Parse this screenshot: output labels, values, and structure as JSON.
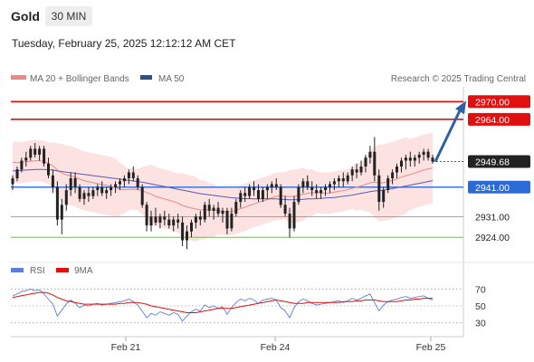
{
  "header": {
    "symbol": "Gold",
    "timeframe": "30 MIN",
    "timestamp": "Tuesday, February 25, 2025 12:12:12 AM CET"
  },
  "legend": {
    "ma20": "MA 20 + Bollinger Bands",
    "ma50": "MA 50",
    "rsi": "RSI",
    "ma9": "9MA",
    "credit": "Research © 2025 Trading Central"
  },
  "colors": {
    "candle": "#222222",
    "band_fill": "#fde2e2",
    "ma20": "#e88a8a",
    "ma50": "#5a5ab8",
    "resistance": "#e01010",
    "pivot": "#2a6bd8",
    "support": "#6aa84f",
    "rsi": "#5b7fd6",
    "rsi_ma": "#e01010",
    "arrow": "#2f5fa8",
    "last_price_bg": "#222222"
  },
  "chart_data": [
    {
      "type": "candlestick",
      "title": "Gold",
      "x_ticks": [
        "Feb 21",
        "Feb 24",
        "Feb 25"
      ],
      "ylim": [
        2917,
        2975
      ],
      "candles": [
        [
          2942,
          2945,
          2940,
          2944
        ],
        [
          2944,
          2948,
          2943,
          2947
        ],
        [
          2947,
          2951,
          2946,
          2950
        ],
        [
          2950,
          2953,
          2948,
          2951
        ],
        [
          2951,
          2955,
          2950,
          2954
        ],
        [
          2954,
          2956,
          2951,
          2952
        ],
        [
          2952,
          2955,
          2950,
          2954
        ],
        [
          2954,
          2955,
          2948,
          2949
        ],
        [
          2949,
          2951,
          2944,
          2945
        ],
        [
          2945,
          2947,
          2939,
          2941
        ],
        [
          2941,
          2943,
          2928,
          2930
        ],
        [
          2930,
          2937,
          2925,
          2935
        ],
        [
          2935,
          2942,
          2933,
          2940
        ],
        [
          2940,
          2946,
          2938,
          2944
        ],
        [
          2944,
          2946,
          2939,
          2941
        ],
        [
          2941,
          2942,
          2936,
          2937
        ],
        [
          2937,
          2940,
          2935,
          2939
        ],
        [
          2939,
          2941,
          2936,
          2938
        ],
        [
          2938,
          2941,
          2937,
          2940
        ],
        [
          2940,
          2942,
          2938,
          2941
        ],
        [
          2941,
          2943,
          2938,
          2939
        ],
        [
          2939,
          2941,
          2937,
          2940
        ],
        [
          2940,
          2942,
          2938,
          2941
        ],
        [
          2941,
          2943,
          2939,
          2942
        ],
        [
          2942,
          2944,
          2940,
          2943
        ],
        [
          2943,
          2945,
          2941,
          2944
        ],
        [
          2944,
          2947,
          2942,
          2946
        ],
        [
          2946,
          2948,
          2943,
          2944
        ],
        [
          2944,
          2945,
          2940,
          2941
        ],
        [
          2941,
          2942,
          2934,
          2935
        ],
        [
          2935,
          2936,
          2926,
          2928
        ],
        [
          2928,
          2933,
          2926,
          2931
        ],
        [
          2931,
          2934,
          2928,
          2929
        ],
        [
          2929,
          2932,
          2927,
          2931
        ],
        [
          2931,
          2933,
          2928,
          2930
        ],
        [
          2930,
          2932,
          2927,
          2928
        ],
        [
          2928,
          2931,
          2926,
          2930
        ],
        [
          2930,
          2932,
          2927,
          2929
        ],
        [
          2929,
          2931,
          2921,
          2923
        ],
        [
          2923,
          2928,
          2920,
          2926
        ],
        [
          2926,
          2930,
          2924,
          2929
        ],
        [
          2929,
          2932,
          2927,
          2931
        ],
        [
          2931,
          2933,
          2928,
          2930
        ],
        [
          2930,
          2936,
          2929,
          2935
        ],
        [
          2935,
          2937,
          2931,
          2933
        ],
        [
          2933,
          2935,
          2930,
          2934
        ],
        [
          2934,
          2936,
          2931,
          2932
        ],
        [
          2932,
          2934,
          2929,
          2933
        ],
        [
          2933,
          2934,
          2925,
          2927
        ],
        [
          2927,
          2934,
          2926,
          2932
        ],
        [
          2932,
          2937,
          2931,
          2936
        ],
        [
          2936,
          2940,
          2934,
          2939
        ],
        [
          2939,
          2941,
          2936,
          2938
        ],
        [
          2938,
          2942,
          2937,
          2941
        ],
        [
          2941,
          2943,
          2938,
          2940
        ],
        [
          2940,
          2942,
          2936,
          2937
        ],
        [
          2937,
          2941,
          2936,
          2940
        ],
        [
          2940,
          2942,
          2937,
          2941
        ],
        [
          2941,
          2943,
          2939,
          2942
        ],
        [
          2942,
          2944,
          2940,
          2941
        ],
        [
          2941,
          2942,
          2934,
          2935
        ],
        [
          2935,
          2938,
          2931,
          2932
        ],
        [
          2932,
          2934,
          2924,
          2927
        ],
        [
          2927,
          2938,
          2926,
          2936
        ],
        [
          2936,
          2942,
          2935,
          2941
        ],
        [
          2941,
          2944,
          2939,
          2943
        ],
        [
          2943,
          2945,
          2940,
          2941
        ],
        [
          2941,
          2943,
          2938,
          2940
        ],
        [
          2940,
          2942,
          2937,
          2939
        ],
        [
          2939,
          2941,
          2937,
          2940
        ],
        [
          2940,
          2942,
          2938,
          2941
        ],
        [
          2941,
          2943,
          2939,
          2942
        ],
        [
          2942,
          2944,
          2940,
          2943
        ],
        [
          2943,
          2945,
          2941,
          2944
        ],
        [
          2944,
          2946,
          2941,
          2943
        ],
        [
          2943,
          2946,
          2942,
          2945
        ],
        [
          2945,
          2948,
          2943,
          2947
        ],
        [
          2947,
          2949,
          2944,
          2946
        ],
        [
          2946,
          2950,
          2945,
          2948
        ],
        [
          2948,
          2952,
          2946,
          2951
        ],
        [
          2951,
          2955,
          2949,
          2953
        ],
        [
          2953,
          2958,
          2943,
          2945
        ],
        [
          2945,
          2947,
          2933,
          2936
        ],
        [
          2936,
          2941,
          2934,
          2940
        ],
        [
          2940,
          2945,
          2939,
          2944
        ],
        [
          2944,
          2947,
          2942,
          2946
        ],
        [
          2946,
          2949,
          2944,
          2948
        ],
        [
          2948,
          2951,
          2946,
          2950
        ],
        [
          2950,
          2952,
          2947,
          2951
        ],
        [
          2951,
          2953,
          2948,
          2950
        ],
        [
          2950,
          2952,
          2948,
          2951
        ],
        [
          2951,
          2953,
          2949,
          2952
        ],
        [
          2952,
          2954,
          2950,
          2953
        ],
        [
          2953,
          2954,
          2950,
          2951
        ],
        [
          2951,
          2952,
          2949,
          2949.68
        ]
      ],
      "ma20": [
        2949.5,
        2949.3,
        2949.4,
        2949.6,
        2949.8,
        2949.9,
        2950.0,
        2949.7,
        2949.0,
        2948.2,
        2946.8,
        2945.8,
        2945.2,
        2944.9,
        2944.4,
        2943.7,
        2943.2,
        2942.8,
        2942.5,
        2942.2,
        2941.9,
        2941.6,
        2941.2,
        2940.8,
        2940.3,
        2940.1,
        2940.2,
        2940.3,
        2940.2,
        2939.8,
        2939.2,
        2938.6,
        2937.9,
        2937.4,
        2937.0,
        2936.6,
        2936.1,
        2935.6,
        2934.8,
        2934.3,
        2933.9,
        2933.6,
        2933.3,
        2933.3,
        2933.3,
        2933.2,
        2933.0,
        2932.8,
        2932.6,
        2932.7,
        2933.2,
        2933.7,
        2934.2,
        2934.8,
        2935.3,
        2935.8,
        2936.3,
        2936.8,
        2937.4,
        2937.9,
        2938.0,
        2938.0,
        2937.8,
        2937.9,
        2938.2,
        2938.6,
        2938.9,
        2939.1,
        2939.2,
        2939.1,
        2938.9,
        2939.0,
        2939.3,
        2939.6,
        2939.8,
        2940.1,
        2940.6,
        2941.0,
        2941.4,
        2941.9,
        2942.5,
        2942.7,
        2942.4,
        2942.5,
        2942.9,
        2943.3,
        2943.8,
        2944.4,
        2944.9,
        2945.3,
        2945.8,
        2946.3,
        2946.8,
        2947.2,
        2947.5
      ],
      "ma50": [
        2946.5,
        2946.6,
        2946.7,
        2946.8,
        2946.9,
        2947.0,
        2947.0,
        2947.0,
        2946.9,
        2946.8,
        2946.5,
        2946.3,
        2946.1,
        2945.9,
        2945.7,
        2945.5,
        2945.3,
        2945.1,
        2944.9,
        2944.7,
        2944.5,
        2944.3,
        2944.1,
        2943.9,
        2943.7,
        2943.5,
        2943.3,
        2943.1,
        2942.9,
        2942.7,
        2942.4,
        2942.1,
        2941.8,
        2941.5,
        2941.2,
        2940.9,
        2940.6,
        2940.3,
        2940.0,
        2939.7,
        2939.4,
        2939.1,
        2938.8,
        2938.6,
        2938.4,
        2938.2,
        2938.0,
        2937.8,
        2937.6,
        2937.4,
        2937.3,
        2937.2,
        2937.1,
        2937.1,
        2937.0,
        2937.0,
        2937.0,
        2937.0,
        2937.0,
        2937.0,
        2936.9,
        2936.8,
        2936.7,
        2936.7,
        2936.8,
        2936.9,
        2937.0,
        2937.0,
        2937.1,
        2937.2,
        2937.3,
        2937.4,
        2937.5,
        2937.7,
        2937.9,
        2938.1,
        2938.3,
        2938.6,
        2938.9,
        2939.2,
        2939.5,
        2939.7,
        2939.8,
        2940.0,
        2940.2,
        2940.5,
        2940.8,
        2941.1,
        2941.4,
        2941.7,
        2942.0,
        2942.3,
        2942.6,
        2942.9,
        2943.2
      ],
      "bb_half_width": [
        7,
        7,
        7,
        7,
        7,
        7,
        7,
        7,
        7,
        8,
        9,
        10,
        10,
        10,
        10,
        10,
        10,
        10,
        10,
        10,
        10,
        10,
        10,
        10,
        9,
        8,
        7,
        7,
        7,
        8,
        9,
        10,
        10,
        10,
        10,
        10,
        10,
        10,
        11,
        11,
        11,
        11,
        10,
        10,
        9,
        9,
        8,
        8,
        8,
        8,
        8,
        8,
        8,
        8,
        8,
        8,
        8,
        8,
        8,
        8,
        8,
        8,
        9,
        9,
        9,
        9,
        8,
        8,
        7,
        7,
        7,
        7,
        7,
        7,
        7,
        7,
        7,
        8,
        8,
        9,
        10,
        12,
        13,
        13,
        13,
        13,
        13,
        13,
        13,
        12,
        12,
        12,
        12,
        12,
        12
      ],
      "levels": [
        {
          "value": "2970.00",
          "kind": "resistance"
        },
        {
          "value": "2964.00",
          "kind": "resistance"
        },
        {
          "value": "2949.68",
          "kind": "last"
        },
        {
          "value": "2941.00",
          "kind": "pivot"
        },
        {
          "value": "2931.00",
          "kind": "support"
        },
        {
          "value": "2924.00",
          "kind": "support"
        }
      ],
      "arrow": {
        "from": 2949.68,
        "to": 2970
      }
    },
    {
      "type": "line",
      "title": "RSI",
      "ylim": [
        20,
        80
      ],
      "y_ticks": [
        "70",
        "50",
        "30"
      ],
      "rsi": [
        62,
        64,
        67,
        68,
        70,
        68,
        69,
        64,
        58,
        52,
        38,
        45,
        52,
        57,
        53,
        48,
        51,
        50,
        52,
        53,
        51,
        52,
        53,
        54,
        55,
        56,
        58,
        55,
        51,
        44,
        36,
        41,
        39,
        43,
        41,
        39,
        42,
        40,
        32,
        38,
        43,
        46,
        44,
        51,
        48,
        50,
        47,
        49,
        40,
        48,
        54,
        58,
        56,
        59,
        57,
        53,
        57,
        58,
        59,
        57,
        48,
        44,
        36,
        48,
        55,
        58,
        56,
        53,
        51,
        52,
        53,
        54,
        55,
        56,
        54,
        56,
        59,
        57,
        59,
        62,
        64,
        54,
        44,
        51,
        55,
        57,
        58,
        60,
        61,
        59,
        60,
        61,
        62,
        59,
        57
      ],
      "rsi_ma": [
        60,
        61,
        62,
        63,
        64,
        65,
        66,
        66,
        65,
        63,
        60,
        58,
        56,
        55,
        54,
        53,
        52,
        52,
        52,
        52,
        52,
        52,
        52,
        52,
        53,
        53,
        54,
        54,
        54,
        53,
        52,
        50,
        49,
        48,
        47,
        46,
        45,
        44,
        43,
        42,
        42,
        42,
        43,
        44,
        45,
        46,
        47,
        47,
        47,
        47,
        48,
        49,
        50,
        51,
        52,
        53,
        54,
        55,
        56,
        57,
        56,
        55,
        54,
        53,
        53,
        53,
        54,
        54,
        54,
        54,
        54,
        54,
        54,
        54,
        55,
        55,
        55,
        56,
        56,
        57,
        57,
        57,
        56,
        55,
        55,
        55,
        55,
        56,
        57,
        57,
        58,
        58,
        59,
        59,
        59
      ]
    }
  ]
}
